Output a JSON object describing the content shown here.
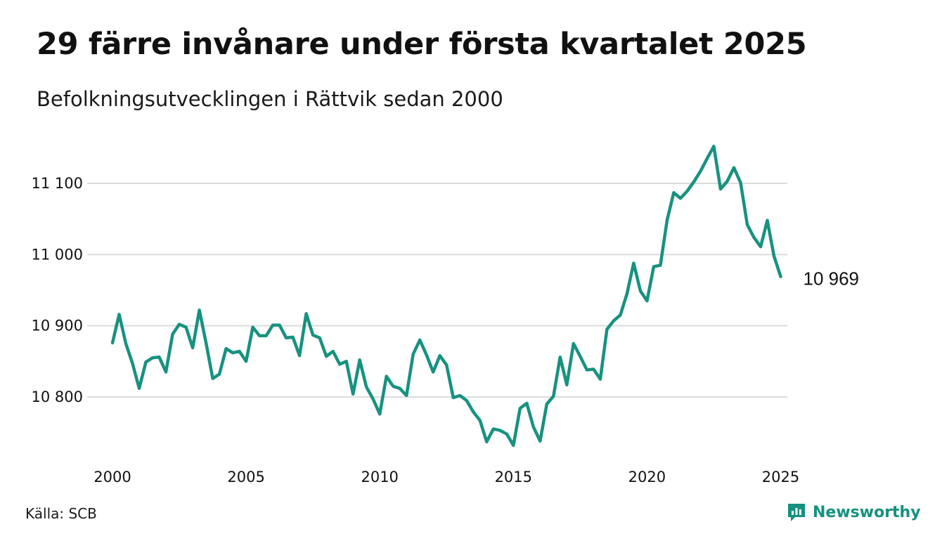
{
  "title": "29 färre invånare under första kvartalet 2025",
  "subtitle": "Befolkningsutvecklingen i Rättvik sedan 2000",
  "source": "Källa: SCB",
  "brand": {
    "name": "Newsworthy",
    "icon": "newsworthy-logo-icon",
    "color": "#159180"
  },
  "chart_data": {
    "type": "line",
    "line_color": "#17927f",
    "grid": true,
    "ylim": [
      10730,
      11160
    ],
    "y_ticks": [
      10800,
      10900,
      11000,
      11100
    ],
    "y_tick_labels": [
      "10 800",
      "10 900",
      "11 000",
      "11 100"
    ],
    "x_ticks": [
      2000,
      2005,
      2010,
      2015,
      2020,
      2025
    ],
    "x_tick_labels": [
      "2000",
      "2005",
      "2010",
      "2015",
      "2020",
      "2025"
    ],
    "xlim": [
      2000,
      2025.25
    ],
    "end_label": "10 969",
    "series": [
      {
        "x_start": 2000.0,
        "x_step": 0.25,
        "values": [
          10876,
          10916,
          10875,
          10847,
          10812,
          10849,
          10855,
          10856,
          10835,
          10888,
          10902,
          10898,
          10869,
          10922,
          10876,
          10826,
          10832,
          10868,
          10862,
          10864,
          10850,
          10898,
          10886,
          10886,
          10901,
          10901,
          10883,
          10884,
          10858,
          10917,
          10887,
          10883,
          10857,
          10864,
          10846,
          10850,
          10804,
          10852,
          10814,
          10797,
          10776,
          10829,
          10815,
          10812,
          10802,
          10860,
          10880,
          10859,
          10835,
          10858,
          10845,
          10799,
          10802,
          10795,
          10779,
          10767,
          10737,
          10755,
          10753,
          10748,
          10732,
          10784,
          10791,
          10758,
          10738,
          10790,
          10801,
          10856,
          10817,
          10875,
          10857,
          10838,
          10839,
          10825,
          10895,
          10907,
          10915,
          10945,
          10988,
          10949,
          10935,
          10983,
          10985,
          11048,
          11087,
          11079,
          11089,
          11102,
          11117,
          11135,
          11152,
          11092,
          11103,
          11122,
          11101,
          11042,
          11024,
          11011,
          11048,
          10998,
          10969
        ]
      }
    ]
  }
}
